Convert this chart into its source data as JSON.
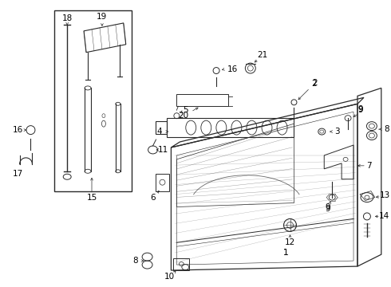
{
  "bg_color": "#ffffff",
  "line_color": "#2a2a2a",
  "label_color": "#000000",
  "figw": 4.9,
  "figh": 3.6,
  "dpi": 100
}
